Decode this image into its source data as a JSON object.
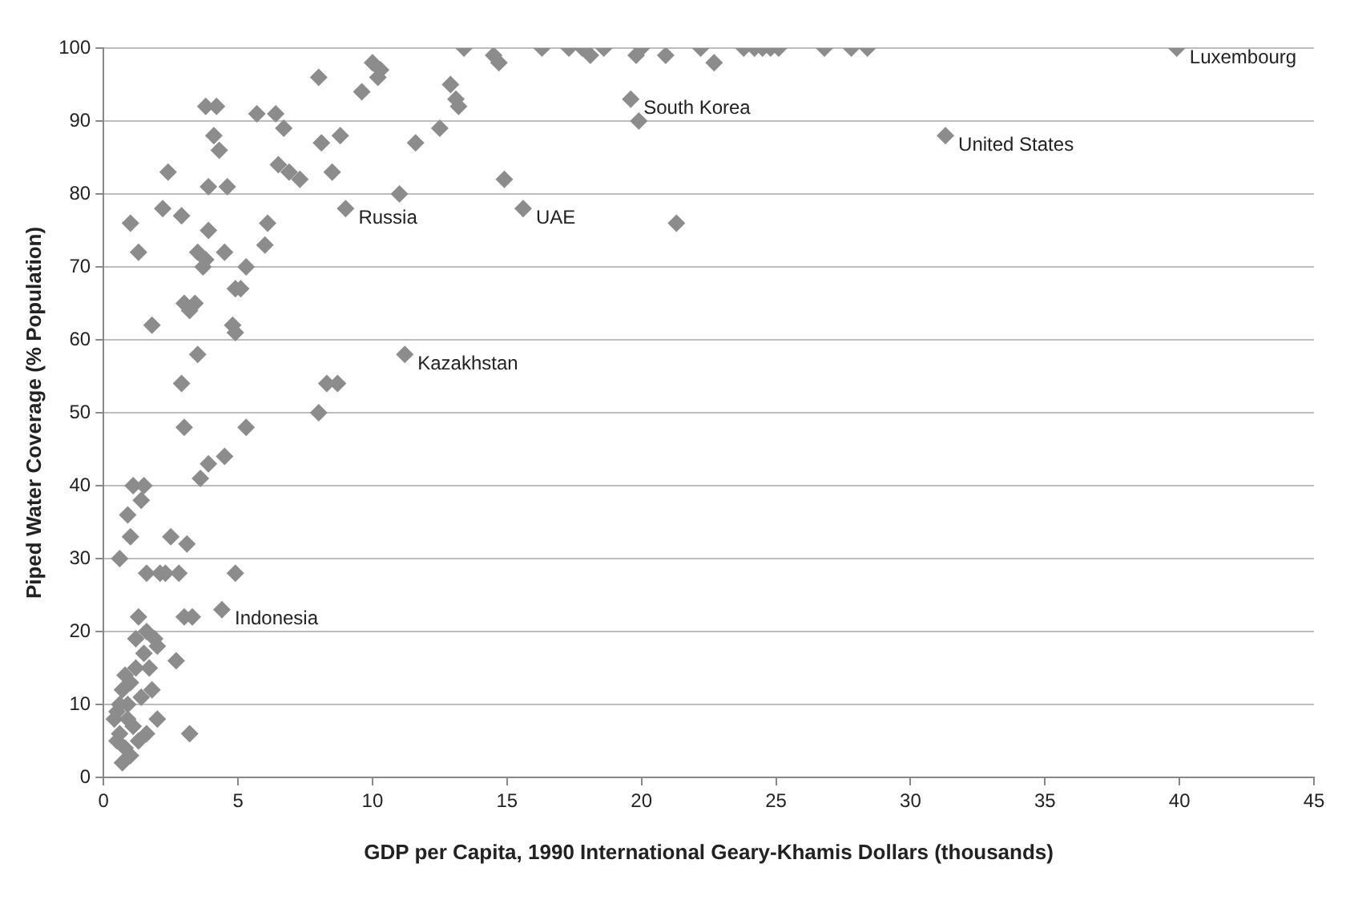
{
  "chart_data": {
    "type": "scatter",
    "xlabel": "GDP per Capita, 1990 International Geary-Khamis Dollars (thousands)",
    "ylabel": "Piped Water Coverage (% Population)",
    "xlim": [
      0,
      45
    ],
    "xticks": [
      0,
      5,
      10,
      15,
      20,
      25,
      30,
      35,
      40,
      45
    ],
    "ylim": [
      0,
      100
    ],
    "yticks": [
      0,
      10,
      20,
      30,
      40,
      50,
      60,
      70,
      80,
      90,
      100
    ],
    "grid": "y",
    "marker": "diamond",
    "series": [
      {
        "color": "#8c8c8c",
        "x": [
          13.4,
          14.5,
          14.7,
          16.3,
          17.3,
          17.8,
          18.1,
          18.6,
          19.8,
          20.0,
          20.9,
          22.2,
          22.7,
          23.8,
          24.2,
          24.5,
          24.8,
          25.1,
          26.8,
          27.8,
          28.4,
          39.9,
          10.0,
          10.3,
          10.2,
          19.6,
          19.9,
          31.3,
          15.6,
          14.9,
          21.3,
          11.2,
          9.0,
          8.0,
          8.1,
          8.5,
          8.8,
          9.6,
          11.0,
          11.6,
          12.5,
          12.9,
          13.1,
          13.2,
          8.0,
          8.3,
          8.7,
          5.7,
          6.4,
          6.5,
          6.7,
          6.9,
          7.3,
          6.1,
          6.0,
          5.3,
          4.5,
          4.9,
          5.1,
          4.8,
          4.9,
          3.7,
          3.5,
          3.8,
          3.9,
          3.4,
          3.0,
          3.2,
          2.9,
          3.5,
          3.0,
          5.3,
          4.5,
          3.6,
          3.9,
          2.5,
          2.3,
          2.8,
          3.1,
          3.0,
          3.3,
          2.7,
          2.0,
          3.2,
          4.9,
          4.4,
          0.6,
          0.9,
          1.1,
          1.5,
          1.4,
          1.0,
          1.6,
          2.1,
          1.3,
          1.6,
          1.2,
          1.9,
          1.5,
          0.8,
          1.0,
          1.2,
          0.7,
          0.9,
          0.5,
          0.4,
          0.6,
          0.8,
          0.7,
          1.0,
          1.3,
          1.6,
          1.1,
          0.9,
          1.4,
          1.8,
          2.0,
          1.7,
          0.6,
          0.5,
          3.8,
          4.2,
          4.1,
          4.3,
          3.9,
          4.6,
          2.4,
          1.0,
          1.3,
          1.8,
          2.2,
          2.9
        ],
        "values": [
          100,
          99,
          98,
          100,
          100,
          100,
          99,
          100,
          99,
          100,
          99,
          100,
          98,
          100,
          100,
          100,
          100,
          100,
          100,
          100,
          100,
          100,
          98,
          97,
          96,
          93,
          90,
          88,
          78,
          82,
          76,
          58,
          78,
          96,
          87,
          83,
          88,
          94,
          80,
          87,
          89,
          95,
          93,
          92,
          50,
          54,
          54,
          91,
          91,
          84,
          89,
          83,
          82,
          76,
          73,
          70,
          72,
          67,
          67,
          62,
          61,
          70,
          72,
          71,
          75,
          65,
          65,
          64,
          54,
          58,
          48,
          48,
          44,
          41,
          43,
          33,
          28,
          28,
          32,
          22,
          22,
          16,
          8,
          6,
          28,
          23,
          30,
          36,
          40,
          40,
          38,
          33,
          28,
          28,
          22,
          20,
          19,
          19,
          17,
          14,
          13,
          15,
          12,
          10,
          9,
          8,
          6,
          4,
          2,
          3,
          5,
          6,
          7,
          8,
          11,
          12,
          18,
          15,
          10,
          5,
          92,
          92,
          88,
          86,
          81,
          81,
          83,
          76,
          72,
          62,
          78,
          77
        ]
      }
    ],
    "annotations": [
      {
        "text": "Luxembourg",
        "x": 39.9,
        "y": 100
      },
      {
        "text": "South Korea",
        "x": 19.6,
        "y": 93
      },
      {
        "text": "United States",
        "x": 31.3,
        "y": 88
      },
      {
        "text": "UAE",
        "x": 15.6,
        "y": 78
      },
      {
        "text": "Russia",
        "x": 9.0,
        "y": 78
      },
      {
        "text": "Kazakhstan",
        "x": 11.2,
        "y": 58
      },
      {
        "text": "Indonesia",
        "x": 4.4,
        "y": 23
      }
    ]
  }
}
